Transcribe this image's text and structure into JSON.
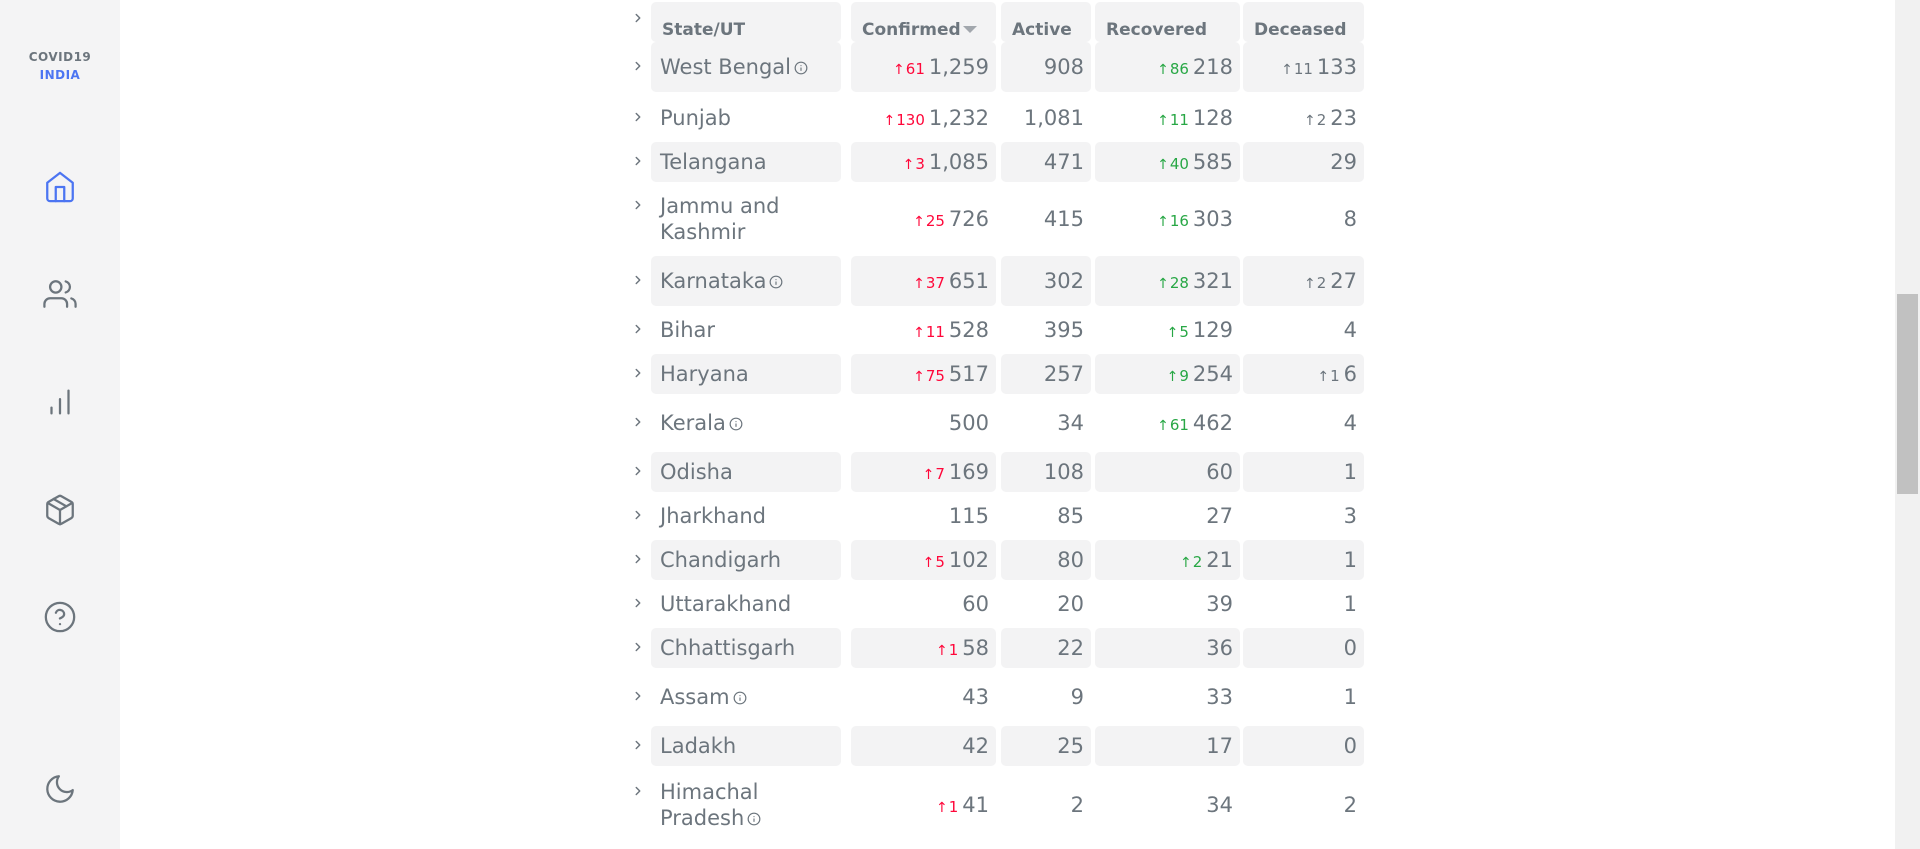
{
  "logo": {
    "line1": "COVID19",
    "line2": "INDIA"
  },
  "nav": {
    "items": [
      {
        "name": "home-icon",
        "active": true
      },
      {
        "name": "users-icon",
        "active": false
      },
      {
        "name": "bar-chart-icon",
        "active": false
      },
      {
        "name": "package-icon",
        "active": false
      },
      {
        "name": "help-circle-icon",
        "active": false
      },
      {
        "name": "moon-icon",
        "active": false
      }
    ],
    "colors": {
      "active": "#4c75f2",
      "inactive": "#6c757d"
    }
  },
  "table": {
    "headers": {
      "state": "State/UT",
      "confirmed": "Confirmed",
      "active": "Active",
      "recovered": "Recovered",
      "deceased": "Deceased"
    },
    "rows": [
      {
        "state": "West Bengal",
        "info": true,
        "conf_delta": "61",
        "confirmed": "1,259",
        "active": "908",
        "rec_delta": "86",
        "recovered": "218",
        "dec_delta": "11",
        "deceased": "133"
      },
      {
        "state": "Punjab",
        "info": false,
        "conf_delta": "130",
        "confirmed": "1,232",
        "active": "1,081",
        "rec_delta": "11",
        "recovered": "128",
        "dec_delta": "2",
        "deceased": "23"
      },
      {
        "state": "Telangana",
        "info": false,
        "conf_delta": "3",
        "confirmed": "1,085",
        "active": "471",
        "rec_delta": "40",
        "recovered": "585",
        "dec_delta": "",
        "deceased": "29"
      },
      {
        "state": "Jammu and Kashmir",
        "state_line1": "Jammu and",
        "state_line2": "Kashmir",
        "info": false,
        "conf_delta": "25",
        "confirmed": "726",
        "active": "415",
        "rec_delta": "16",
        "recovered": "303",
        "dec_delta": "",
        "deceased": "8"
      },
      {
        "state": "Karnataka",
        "info": true,
        "conf_delta": "37",
        "confirmed": "651",
        "active": "302",
        "rec_delta": "28",
        "recovered": "321",
        "dec_delta": "2",
        "deceased": "27"
      },
      {
        "state": "Bihar",
        "info": false,
        "conf_delta": "11",
        "confirmed": "528",
        "active": "395",
        "rec_delta": "5",
        "recovered": "129",
        "dec_delta": "",
        "deceased": "4"
      },
      {
        "state": "Haryana",
        "info": false,
        "conf_delta": "75",
        "confirmed": "517",
        "active": "257",
        "rec_delta": "9",
        "recovered": "254",
        "dec_delta": "1",
        "deceased": "6"
      },
      {
        "state": "Kerala",
        "info": true,
        "conf_delta": "",
        "confirmed": "500",
        "active": "34",
        "rec_delta": "61",
        "recovered": "462",
        "dec_delta": "",
        "deceased": "4"
      },
      {
        "state": "Odisha",
        "info": false,
        "conf_delta": "7",
        "confirmed": "169",
        "active": "108",
        "rec_delta": "",
        "recovered": "60",
        "dec_delta": "",
        "deceased": "1"
      },
      {
        "state": "Jharkhand",
        "info": false,
        "conf_delta": "",
        "confirmed": "115",
        "active": "85",
        "rec_delta": "",
        "recovered": "27",
        "dec_delta": "",
        "deceased": "3"
      },
      {
        "state": "Chandigarh",
        "info": false,
        "conf_delta": "5",
        "confirmed": "102",
        "active": "80",
        "rec_delta": "2",
        "recovered": "21",
        "dec_delta": "",
        "deceased": "1"
      },
      {
        "state": "Uttarakhand",
        "info": false,
        "conf_delta": "",
        "confirmed": "60",
        "active": "20",
        "rec_delta": "",
        "recovered": "39",
        "dec_delta": "",
        "deceased": "1"
      },
      {
        "state": "Chhattisgarh",
        "info": false,
        "conf_delta": "1",
        "confirmed": "58",
        "active": "22",
        "rec_delta": "",
        "recovered": "36",
        "dec_delta": "",
        "deceased": "0"
      },
      {
        "state": "Assam",
        "info": true,
        "conf_delta": "",
        "confirmed": "43",
        "active": "9",
        "rec_delta": "",
        "recovered": "33",
        "dec_delta": "",
        "deceased": "1"
      },
      {
        "state": "Ladakh",
        "info": false,
        "conf_delta": "",
        "confirmed": "42",
        "active": "25",
        "rec_delta": "",
        "recovered": "17",
        "dec_delta": "",
        "deceased": "0"
      },
      {
        "state": "Himachal Pradesh",
        "state_line1": "Himachal",
        "state_line2": "Pradesh",
        "info": true,
        "conf_delta": "1",
        "confirmed": "41",
        "active": "2",
        "rec_delta": "",
        "recovered": "34",
        "dec_delta": "",
        "deceased": "2"
      }
    ]
  },
  "colors": {
    "confirmed_delta": "#ff073a",
    "recovered_delta": "#28a745",
    "deceased_delta": "#6c757d",
    "row_shade": "#f3f3f4",
    "sidebar_bg": "#f4f4f5"
  }
}
